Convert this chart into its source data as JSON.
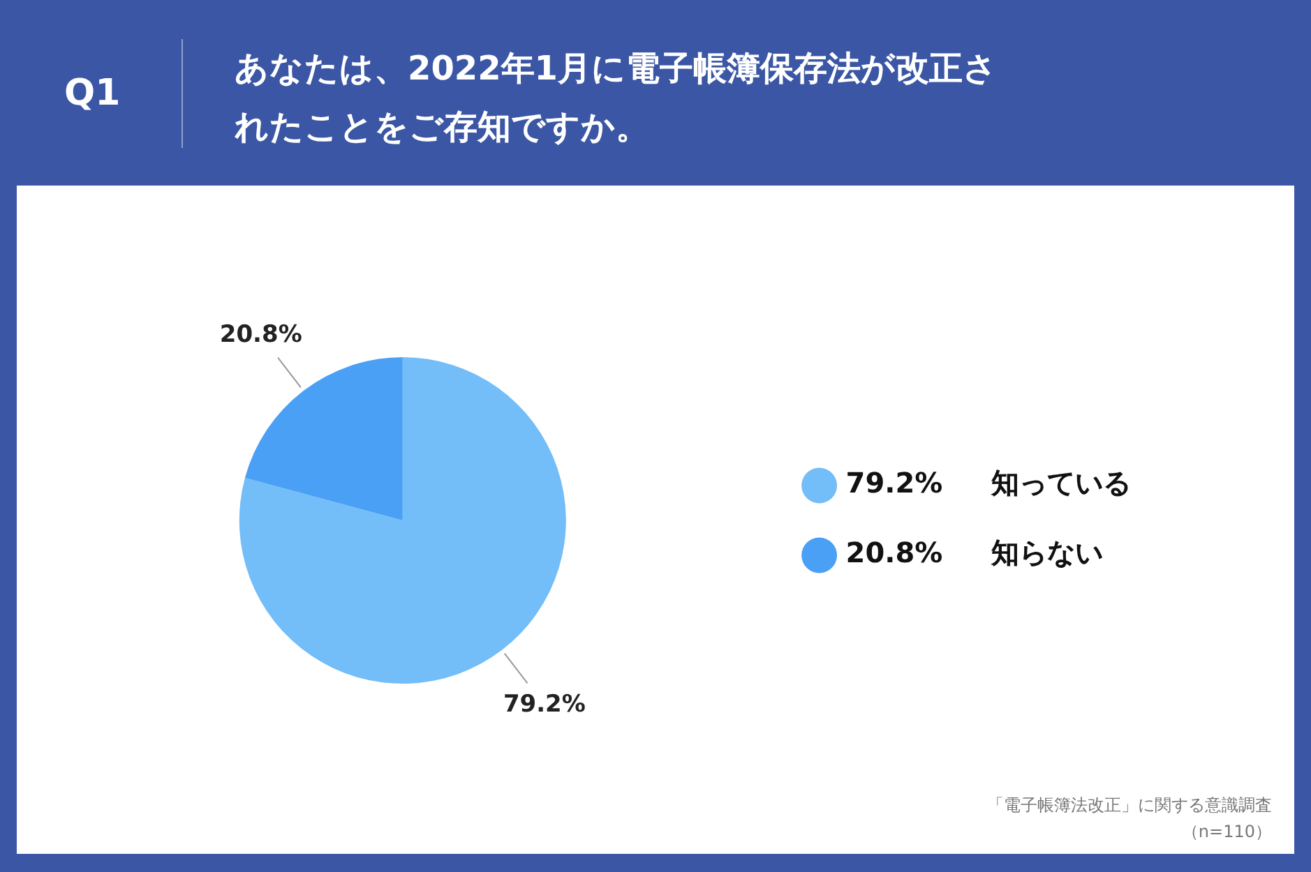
{
  "chart_data": {
    "type": "pie",
    "title": "あなたは、2022年1月に電子帳簿保存法が改正されたことをご存知ですか。",
    "categories": [
      "知っている",
      "知らない"
    ],
    "values": [
      79.2,
      20.8
    ],
    "value_labels": [
      "79.2%",
      "20.8%"
    ],
    "colors": [
      "#73bdf8",
      "#4aa0f5"
    ],
    "data_labels": true,
    "legend": "right",
    "annotations": [
      "Q1",
      "「電子帳簿法改正」に関する意識調査",
      "（n=110）"
    ]
  }
}
